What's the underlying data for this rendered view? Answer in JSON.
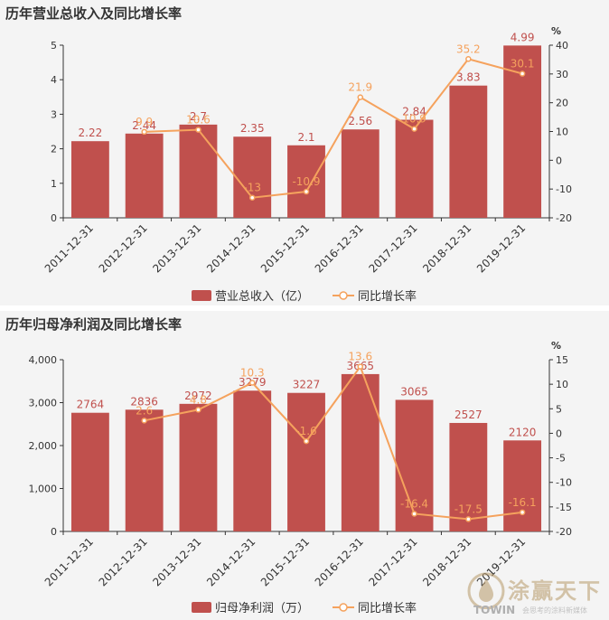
{
  "chart_data": [
    {
      "type": "bar",
      "title": "历年营业总收入及同比增长率",
      "categories": [
        "2011-12-31",
        "2012-12-31",
        "2013-12-31",
        "2014-12-31",
        "2015-12-31",
        "2016-12-31",
        "2017-12-31",
        "2018-12-31",
        "2019-12-31"
      ],
      "series": [
        {
          "name": "营业总收入（亿）",
          "type": "bar",
          "axis": "left",
          "values": [
            2.22,
            2.44,
            2.7,
            2.35,
            2.1,
            2.56,
            2.84,
            3.83,
            4.99
          ],
          "labels": [
            "2.22",
            "2.44",
            "2.7",
            "2.35",
            "2.1",
            "2.56",
            "2.84",
            "3.83",
            "4.99"
          ]
        },
        {
          "name": "同比增长率",
          "type": "line",
          "axis": "right",
          "values": [
            null,
            9.9,
            10.6,
            -13,
            -10.9,
            21.9,
            10.9,
            35.2,
            30.1
          ],
          "labels": [
            "",
            "9.9",
            "10.6",
            "-13",
            "-10.9",
            "21.9",
            "10.9",
            "35.2",
            "30.1"
          ]
        }
      ],
      "left_axis": {
        "min": 0,
        "max": 5,
        "ticks": [
          "0",
          "1",
          "2",
          "3",
          "4",
          "5"
        ]
      },
      "right_axis": {
        "min": -20,
        "max": 40,
        "ticks": [
          "-20",
          "-10",
          "0",
          "10",
          "20",
          "30",
          "40"
        ],
        "unit": "%"
      },
      "legend_position": "bottom",
      "colors": {
        "bar": "#c0504d",
        "line": "#f5a25d"
      }
    },
    {
      "type": "bar",
      "title": "历年归母净利润及同比增长率",
      "categories": [
        "2011-12-31",
        "2012-12-31",
        "2013-12-31",
        "2014-12-31",
        "2015-12-31",
        "2016-12-31",
        "2017-12-31",
        "2018-12-31",
        "2019-12-31"
      ],
      "series": [
        {
          "name": "归母净利润（万）",
          "type": "bar",
          "axis": "left",
          "values": [
            2764,
            2836,
            2972,
            3279,
            3227,
            3665,
            3065,
            2527,
            2120
          ],
          "labels": [
            "2764",
            "2836",
            "2972",
            "3279",
            "3227",
            "3665",
            "3065",
            "2527",
            "2120"
          ]
        },
        {
          "name": "同比增长率",
          "type": "line",
          "axis": "right",
          "values": [
            null,
            2.6,
            4.8,
            10.3,
            -1.6,
            13.6,
            -16.4,
            -17.5,
            -16.1
          ],
          "labels": [
            "",
            "2.6",
            "4.8",
            "10.3",
            "-1.6",
            "13.6",
            "-16.4",
            "-17.5",
            "-16.1"
          ]
        }
      ],
      "left_axis": {
        "min": 0,
        "max": 4000,
        "ticks": [
          "0",
          "1,000",
          "2,000",
          "3,000",
          "4,000"
        ]
      },
      "right_axis": {
        "min": -20,
        "max": 15,
        "ticks": [
          "-20",
          "-15",
          "-10",
          "-5",
          "0",
          "5",
          "10",
          "15"
        ],
        "unit": "%"
      },
      "legend_position": "bottom",
      "colors": {
        "bar": "#c0504d",
        "line": "#f5a25d"
      }
    }
  ],
  "watermark": {
    "brand_cn": "涂赢天下",
    "brand_en": "TOWIN",
    "slogan": "会思考的涂料新媒体"
  }
}
